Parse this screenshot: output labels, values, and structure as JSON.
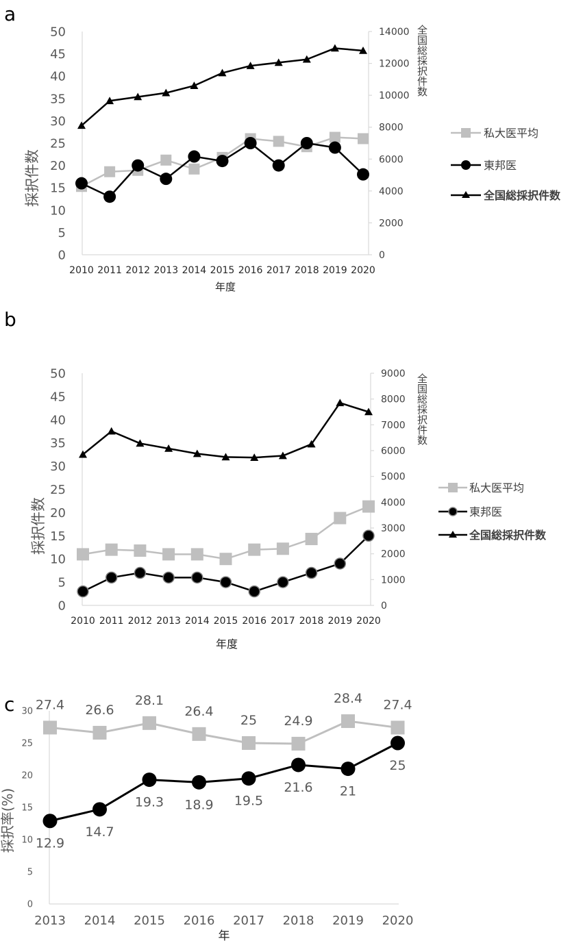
{
  "panels": [
    {
      "label": "a",
      "chart_data": {
        "type": "line",
        "categories": [
          "2010",
          "2011",
          "2012",
          "2013",
          "2014",
          "2015",
          "2016",
          "2017",
          "2018",
          "2019",
          "2020"
        ],
        "xlabel": "年度",
        "ylabel": "採択件数",
        "y2label": "全国総採択件数",
        "ylim": [
          0,
          50
        ],
        "y2lim": [
          0,
          14000
        ],
        "yticks": [
          "0",
          "5",
          "10",
          "15",
          "20",
          "25",
          "30",
          "35",
          "40",
          "45",
          "50"
        ],
        "y2ticks": [
          "0",
          "2000",
          "4000",
          "6000",
          "8000",
          "10000",
          "12000",
          "14000"
        ],
        "legend": "right",
        "series": [
          {
            "name": "私大医平均",
            "axis": "left",
            "marker": "square",
            "color": "#bfbfbf",
            "values": [
              15.3,
              18.6,
              18.9,
              21.2,
              19.2,
              21.8,
              26.0,
              25.4,
              24.2,
              26.3,
              26.0
            ]
          },
          {
            "name": "東邦医",
            "axis": "left",
            "marker": "circle",
            "color": "#000000",
            "values": [
              16,
              13,
              20,
              17,
              22,
              21,
              25,
              20,
              25,
              24,
              18
            ]
          },
          {
            "name": "全国総採択件数",
            "axis": "right",
            "marker": "triangle",
            "color": "#000000",
            "values": [
              8100,
              9650,
              9900,
              10150,
              10600,
              11400,
              11850,
              12050,
              12250,
              12950,
              12800
            ]
          }
        ]
      }
    },
    {
      "label": "b",
      "chart_data": {
        "type": "line",
        "categories": [
          "2010",
          "2011",
          "2012",
          "2013",
          "2014",
          "2015",
          "2016",
          "2017",
          "2018",
          "2019",
          "2020"
        ],
        "xlabel": "年度",
        "ylabel": "採択件数",
        "y2label": "全国総採択件数",
        "ylim": [
          0,
          50
        ],
        "y2lim": [
          0,
          9000
        ],
        "yticks": [
          "0",
          "5",
          "10",
          "15",
          "20",
          "25",
          "30",
          "35",
          "40",
          "45",
          "50"
        ],
        "y2ticks": [
          "0",
          "1000",
          "2000",
          "3000",
          "4000",
          "5000",
          "6000",
          "7000",
          "8000",
          "9000"
        ],
        "legend": "right",
        "series": [
          {
            "name": "私大医平均",
            "axis": "left",
            "marker": "square",
            "color": "#bfbfbf",
            "values": [
              11.0,
              12.0,
              11.8,
              11.0,
              11.0,
              10.0,
              12.0,
              12.2,
              14.3,
              18.8,
              21.3
            ]
          },
          {
            "name": "東邦医",
            "axis": "left",
            "marker": "circle",
            "color": "#000000",
            "values": [
              3,
              6,
              7,
              6,
              6,
              5,
              3,
              5,
              7,
              9,
              15
            ]
          },
          {
            "name": "全国総採択件数",
            "axis": "right",
            "marker": "triangle",
            "color": "#000000",
            "values": [
              5850,
              6750,
              6280,
              6080,
              5880,
              5750,
              5730,
              5800,
              6250,
              7850,
              7500
            ]
          }
        ]
      }
    },
    {
      "label": "c",
      "chart_data": {
        "type": "line",
        "categories": [
          "2013",
          "2014",
          "2015",
          "2016",
          "2017",
          "2018",
          "2019",
          "2020"
        ],
        "xlabel": "年",
        "ylabel": "採択率(%)",
        "ylim": [
          0,
          30
        ],
        "yticks": [
          "0",
          "5",
          "10",
          "15",
          "20",
          "25",
          "30"
        ],
        "legend": "none",
        "series": [
          {
            "name": "",
            "marker": "square",
            "color": "#bfbfbf",
            "values": [
              27.4,
              26.6,
              28.1,
              26.4,
              25,
              24.9,
              28.4,
              27.4
            ],
            "labels": [
              "27.4",
              "26.6",
              "28.1",
              "26.4",
              "25",
              "24.9",
              "28.4",
              "27.4"
            ]
          },
          {
            "name": "",
            "marker": "circle",
            "color": "#000000",
            "values": [
              12.9,
              14.7,
              19.3,
              18.9,
              19.5,
              21.6,
              21,
              25
            ],
            "labels": [
              "12.9",
              "14.7",
              "19.3",
              "18.9",
              "19.5",
              "21.6",
              "21",
              "25"
            ]
          }
        ]
      }
    }
  ]
}
